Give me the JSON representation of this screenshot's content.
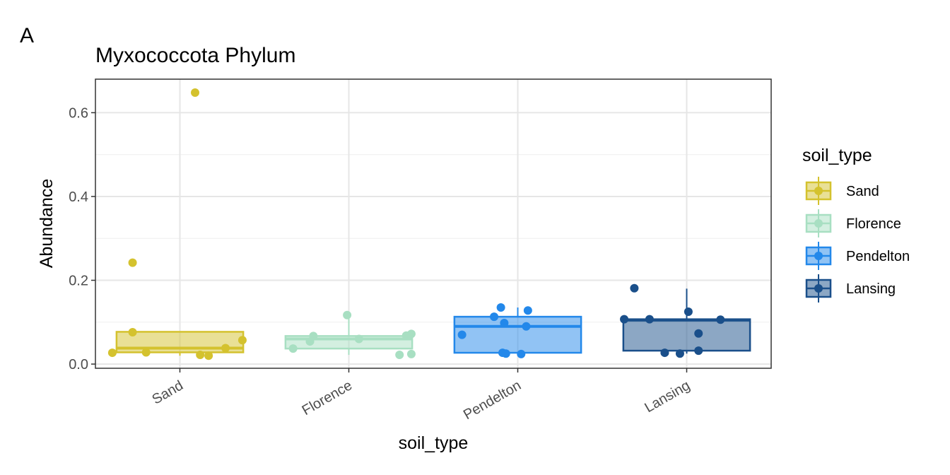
{
  "panel_tag": "A",
  "chart_data": {
    "type": "boxplot",
    "title": "Myxococcota Phylum",
    "xlabel": "soil_type",
    "ylabel": "Abundance",
    "ylim": [
      -0.01,
      0.68
    ],
    "yticks": [
      0.0,
      0.2,
      0.4,
      0.6
    ],
    "ytick_labels": [
      "0.0",
      "0.2",
      "0.4",
      "0.6"
    ],
    "grid": true,
    "legend": {
      "title": "soil_type",
      "position": "right"
    },
    "categories": [
      "Sand",
      "Florence",
      "Pendelton",
      "Lansing"
    ],
    "groups": [
      {
        "name": "Sand",
        "color": "#D4C22E",
        "box": {
          "q1": 0.028,
          "median": 0.038,
          "q3": 0.077,
          "whisker_low": 0.02,
          "whisker_high": 0.077
        },
        "points": [
          {
            "x": -0.4,
            "y": 0.027
          },
          {
            "x": -0.28,
            "y": 0.242
          },
          {
            "x": -0.28,
            "y": 0.076
          },
          {
            "x": -0.2,
            "y": 0.028
          },
          {
            "x": 0.12,
            "y": 0.022
          },
          {
            "x": 0.09,
            "y": 0.648
          },
          {
            "x": 0.17,
            "y": 0.02
          },
          {
            "x": 0.27,
            "y": 0.038
          },
          {
            "x": 0.37,
            "y": 0.057
          }
        ]
      },
      {
        "name": "Florence",
        "color": "#A8DFC2",
        "box": {
          "q1": 0.037,
          "median": 0.06,
          "q3": 0.067,
          "whisker_low": 0.022,
          "whisker_high": 0.117
        },
        "points": [
          {
            "x": -0.33,
            "y": 0.037
          },
          {
            "x": -0.23,
            "y": 0.054
          },
          {
            "x": -0.21,
            "y": 0.067
          },
          {
            "x": -0.01,
            "y": 0.117
          },
          {
            "x": 0.06,
            "y": 0.06
          },
          {
            "x": 0.3,
            "y": 0.022
          },
          {
            "x": 0.34,
            "y": 0.068
          },
          {
            "x": 0.37,
            "y": 0.072
          },
          {
            "x": 0.37,
            "y": 0.024
          }
        ]
      },
      {
        "name": "Pendelton",
        "color": "#2388EA",
        "box": {
          "q1": 0.027,
          "median": 0.09,
          "q3": 0.113,
          "whisker_low": 0.024,
          "whisker_high": 0.135
        },
        "points": [
          {
            "x": -0.33,
            "y": 0.07
          },
          {
            "x": -0.14,
            "y": 0.113
          },
          {
            "x": -0.1,
            "y": 0.135
          },
          {
            "x": -0.08,
            "y": 0.098
          },
          {
            "x": -0.09,
            "y": 0.027
          },
          {
            "x": -0.07,
            "y": 0.025
          },
          {
            "x": 0.02,
            "y": 0.024
          },
          {
            "x": 0.05,
            "y": 0.09
          },
          {
            "x": 0.06,
            "y": 0.128
          }
        ]
      },
      {
        "name": "Lansing",
        "color": "#1A4F8A",
        "box": {
          "q1": 0.032,
          "median": 0.105,
          "q3": 0.107,
          "whisker_low": 0.025,
          "whisker_high": 0.18
        },
        "points": [
          {
            "x": -0.37,
            "y": 0.107
          },
          {
            "x": -0.31,
            "y": 0.181
          },
          {
            "x": -0.22,
            "y": 0.107
          },
          {
            "x": -0.13,
            "y": 0.027
          },
          {
            "x": -0.04,
            "y": 0.025
          },
          {
            "x": 0.01,
            "y": 0.125
          },
          {
            "x": 0.07,
            "y": 0.032
          },
          {
            "x": 0.07,
            "y": 0.073
          },
          {
            "x": 0.2,
            "y": 0.106
          }
        ]
      }
    ]
  }
}
